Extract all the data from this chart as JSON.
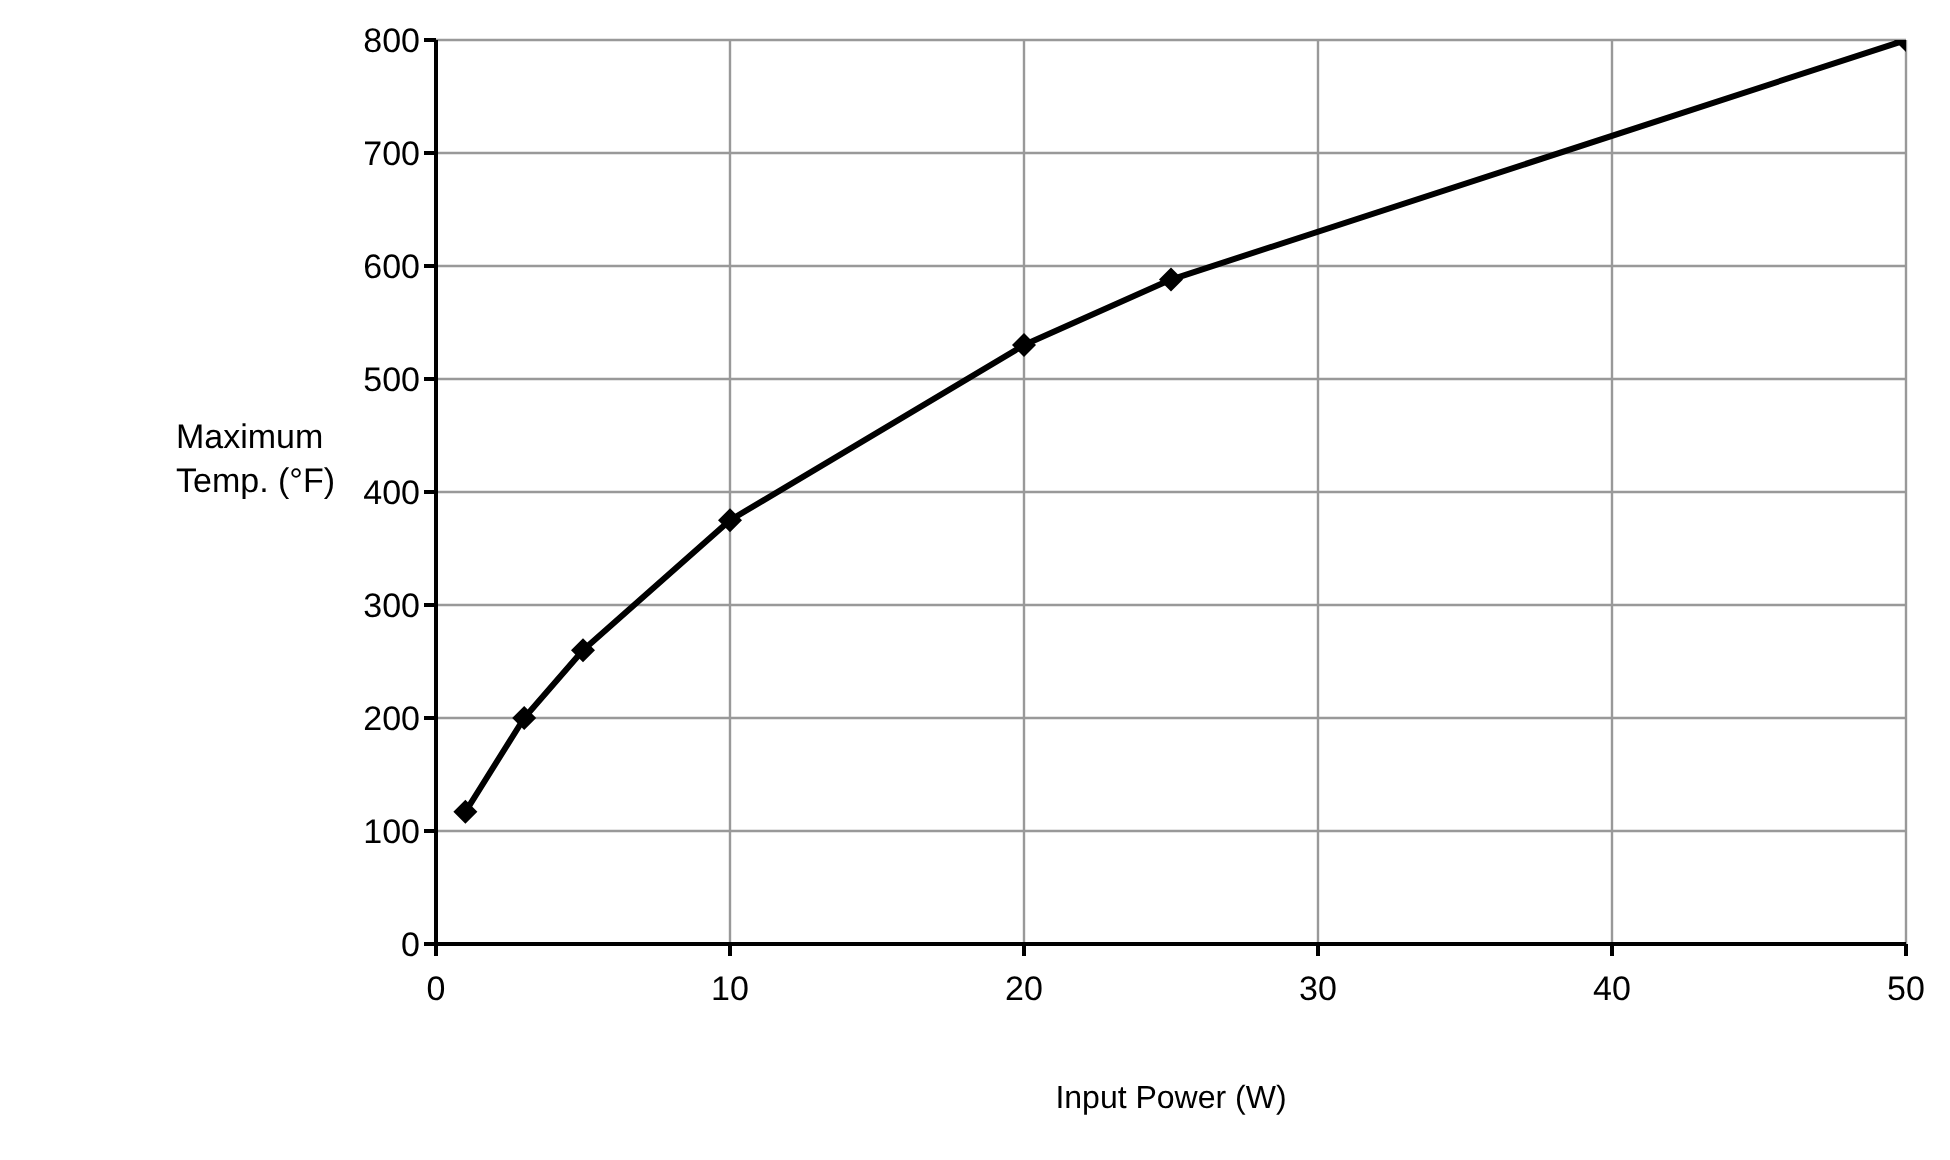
{
  "chart_data": {
    "type": "line",
    "xlabel": "Input Power (W)",
    "ylabel": "Maximum Temp. (°F)",
    "x": [
      1,
      3,
      5,
      10,
      20,
      25,
      50
    ],
    "series": [
      {
        "color": "#000000",
        "values": [
          117,
          200,
          260,
          375,
          530,
          588,
          800
        ]
      }
    ],
    "xlim": [
      0,
      50
    ],
    "xticks": [
      0,
      10,
      20,
      30,
      40,
      50
    ],
    "ylim": [
      0,
      800
    ],
    "yticks": [
      0,
      100,
      200,
      300,
      400,
      500,
      600,
      700,
      800
    ],
    "grid": true,
    "legend": false,
    "marker": "diamond",
    "line_style": "solid"
  }
}
